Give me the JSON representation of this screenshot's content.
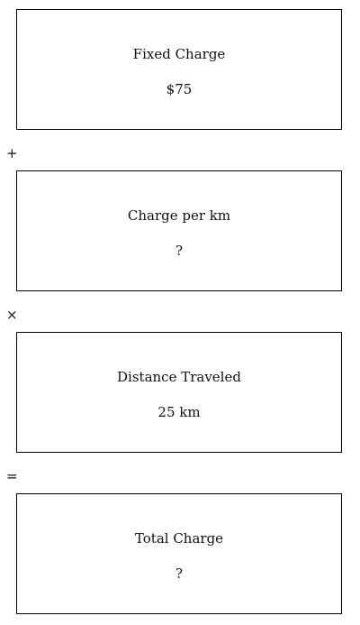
{
  "boxes": [
    {
      "label": "Fixed Charge",
      "value": "$75"
    },
    {
      "label": "Charge per km",
      "value": "?"
    },
    {
      "label": "Distance Traveled",
      "value": "25 km"
    },
    {
      "label": "Total Charge",
      "value": "?"
    }
  ],
  "operators": [
    "+",
    "×",
    "="
  ]
}
